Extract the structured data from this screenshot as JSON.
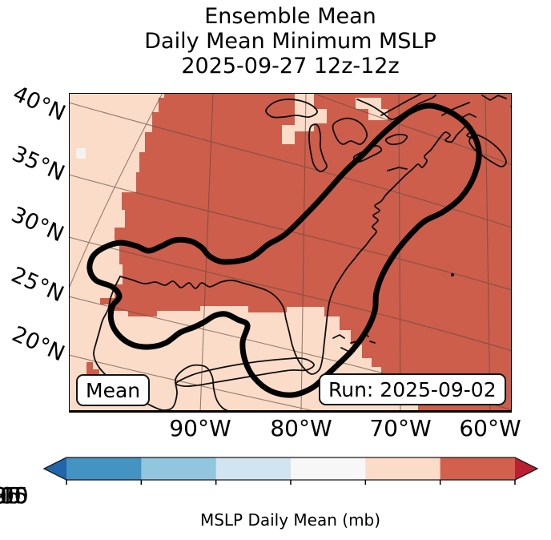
{
  "title": {
    "line1": "Ensemble Mean",
    "line2": "Daily Mean Minimum MSLP",
    "line3": "2025-09-27 12z-12z"
  },
  "map": {
    "lat_labels": [
      "40°N",
      "35°N",
      "30°N",
      "25°N",
      "20°N"
    ],
    "lon_labels": [
      "90°W",
      "80°W",
      "70°W",
      "60°W"
    ],
    "mean_label": "Mean",
    "run_label": "Run: 2025-09-02",
    "colors": {
      "high_band": "#cd5e4b",
      "low_band": "#fadcc9",
      "lowest_patch": "#f5f3f0",
      "contour": "#000000",
      "coastline": "#0d0d0d",
      "gridline": "#5f4a42"
    }
  },
  "colorbar": {
    "label": "MSLP Daily Mean (mb)",
    "ticks": [
      "985",
      "990",
      "995",
      "1000",
      "1005",
      "1010",
      "1015"
    ],
    "segment_colors": [
      "#4393c3",
      "#92c5de",
      "#d1e5f0",
      "#f7f7f7",
      "#fbdcc8",
      "#d2604d"
    ],
    "extend_left_color": "#2166ac",
    "extend_right_color": "#b91f30"
  },
  "chart_data": {
    "type": "heatmap",
    "subtype": "filled-contour-map",
    "title": "Ensemble Mean Daily Mean Minimum MSLP 2025-09-27 12z-12z",
    "colorbar_label": "MSLP Daily Mean (mb)",
    "levels_mb": [
      985,
      990,
      995,
      1000,
      1005,
      1010,
      1015
    ],
    "extend": "both",
    "map_extent": {
      "lon_ticks": [
        "90°W",
        "80°W",
        "70°W",
        "60°W"
      ],
      "lat_ticks": [
        "20°N",
        "25°N",
        "30°N",
        "35°N",
        "40°N"
      ]
    },
    "visible_bands_mb": {
      "1000-1005": "tiny near-white patch at west edge near 35N",
      "1005-1010": "light peach: western strip, southern Gulf of Mexico, Mexico/Yucatan, Cuba and Bahamas, small patches near Great Lakes",
      "1010-1015": "red: most of eastern North America and the western Atlantic"
    },
    "contour_annotation": "single thick black closed contour: loop over Gulf of Mexico, corridor along US East Coast, closed loop near Nova Scotia, loop around western Cuba",
    "annotations": [
      "Mean",
      "Run: 2025-09-02"
    ],
    "grid": true,
    "legend_position": "horizontal colorbar at bottom"
  }
}
